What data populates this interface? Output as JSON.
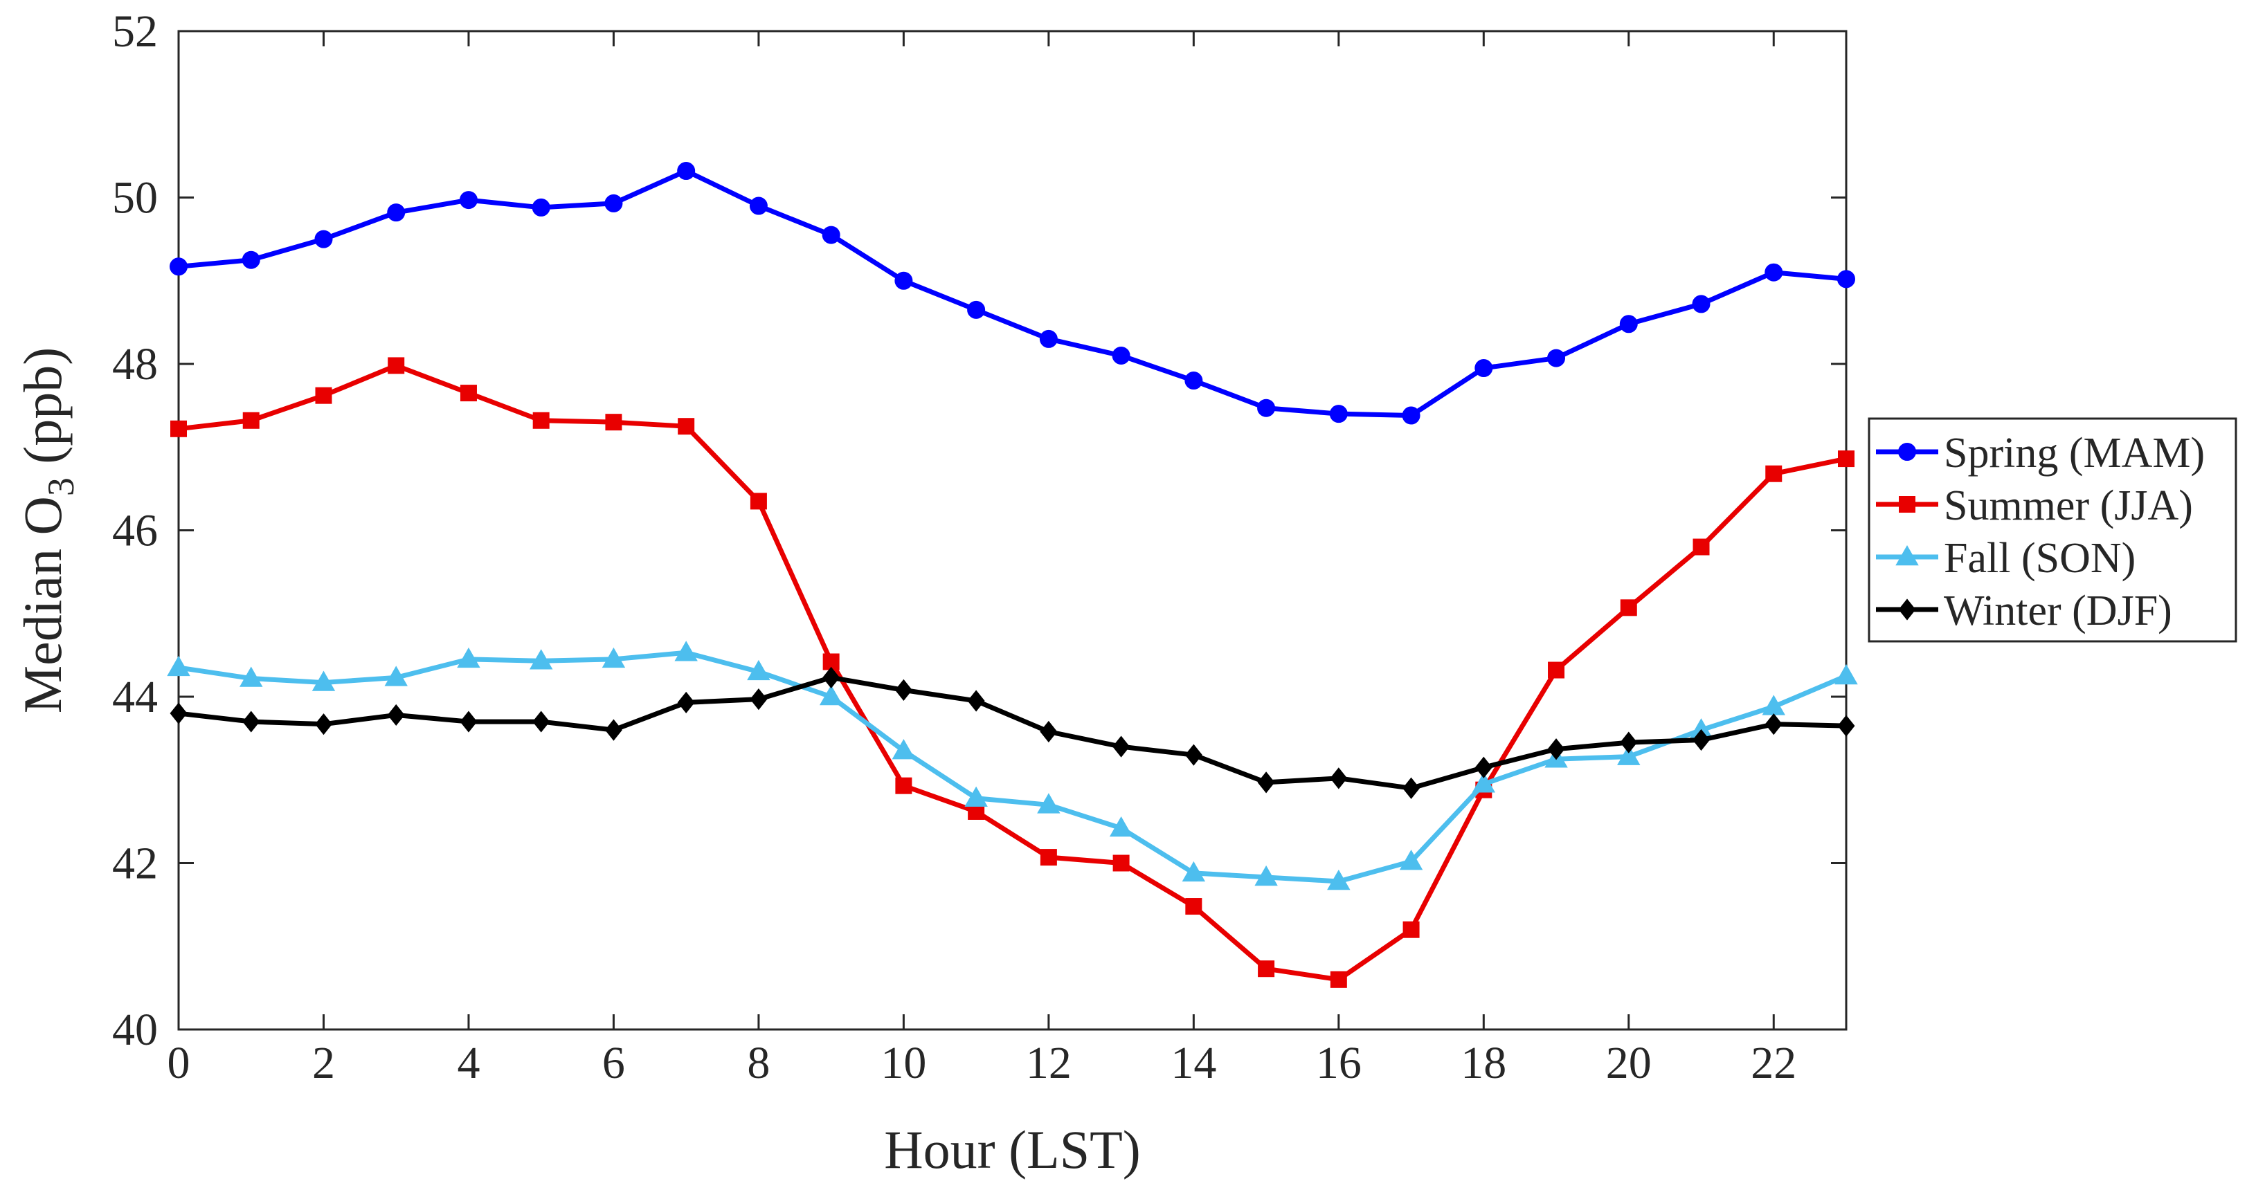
{
  "chart_data": {
    "type": "line",
    "title": "",
    "xlabel": "Hour (LST)",
    "ylabel": {
      "text": "Median O",
      "subscript": "3",
      "unit": " (ppb)"
    },
    "x": [
      0,
      1,
      2,
      3,
      4,
      5,
      6,
      7,
      8,
      9,
      10,
      11,
      12,
      13,
      14,
      15,
      16,
      17,
      18,
      19,
      20,
      21,
      22,
      23
    ],
    "xlim": [
      0,
      23
    ],
    "ylim": [
      40,
      52
    ],
    "xticks": [
      0,
      2,
      4,
      6,
      8,
      10,
      12,
      14,
      16,
      18,
      20,
      22
    ],
    "yticks": [
      40,
      42,
      44,
      46,
      48,
      50,
      52
    ],
    "grid": false,
    "legend_position": "right-middle",
    "series": [
      {
        "name": "Spring (MAM)",
        "color": "#0000FF",
        "marker": "circle",
        "values": [
          49.17,
          49.25,
          49.5,
          49.82,
          49.97,
          49.88,
          49.93,
          50.32,
          49.9,
          49.55,
          49.0,
          48.65,
          48.3,
          48.1,
          47.8,
          47.47,
          47.4,
          47.38,
          47.95,
          48.07,
          48.48,
          48.72,
          49.1,
          49.02
        ]
      },
      {
        "name": "Summer (JJA)",
        "color": "#E80000",
        "marker": "square",
        "values": [
          47.22,
          47.32,
          47.62,
          47.98,
          47.65,
          47.32,
          47.3,
          47.25,
          46.35,
          44.42,
          42.93,
          42.62,
          42.07,
          42.0,
          41.48,
          40.73,
          40.6,
          41.2,
          42.88,
          44.32,
          45.07,
          45.8,
          46.68,
          46.86
        ]
      },
      {
        "name": "Fall (SON)",
        "color": "#4DBEEE",
        "marker": "triangle",
        "values": [
          44.35,
          44.22,
          44.17,
          44.23,
          44.45,
          44.43,
          44.45,
          44.53,
          44.3,
          44.0,
          43.35,
          42.78,
          42.7,
          42.42,
          41.88,
          41.83,
          41.78,
          42.02,
          42.95,
          43.25,
          43.28,
          43.6,
          43.88,
          44.25
        ]
      },
      {
        "name": "Winter (DJF)",
        "color": "#000000",
        "marker": "diamond",
        "values": [
          43.8,
          43.7,
          43.67,
          43.78,
          43.7,
          43.7,
          43.6,
          43.93,
          43.97,
          44.23,
          44.08,
          43.95,
          43.58,
          43.4,
          43.3,
          42.97,
          43.02,
          42.9,
          43.15,
          43.37,
          43.45,
          43.48,
          43.67,
          43.65
        ]
      }
    ]
  }
}
